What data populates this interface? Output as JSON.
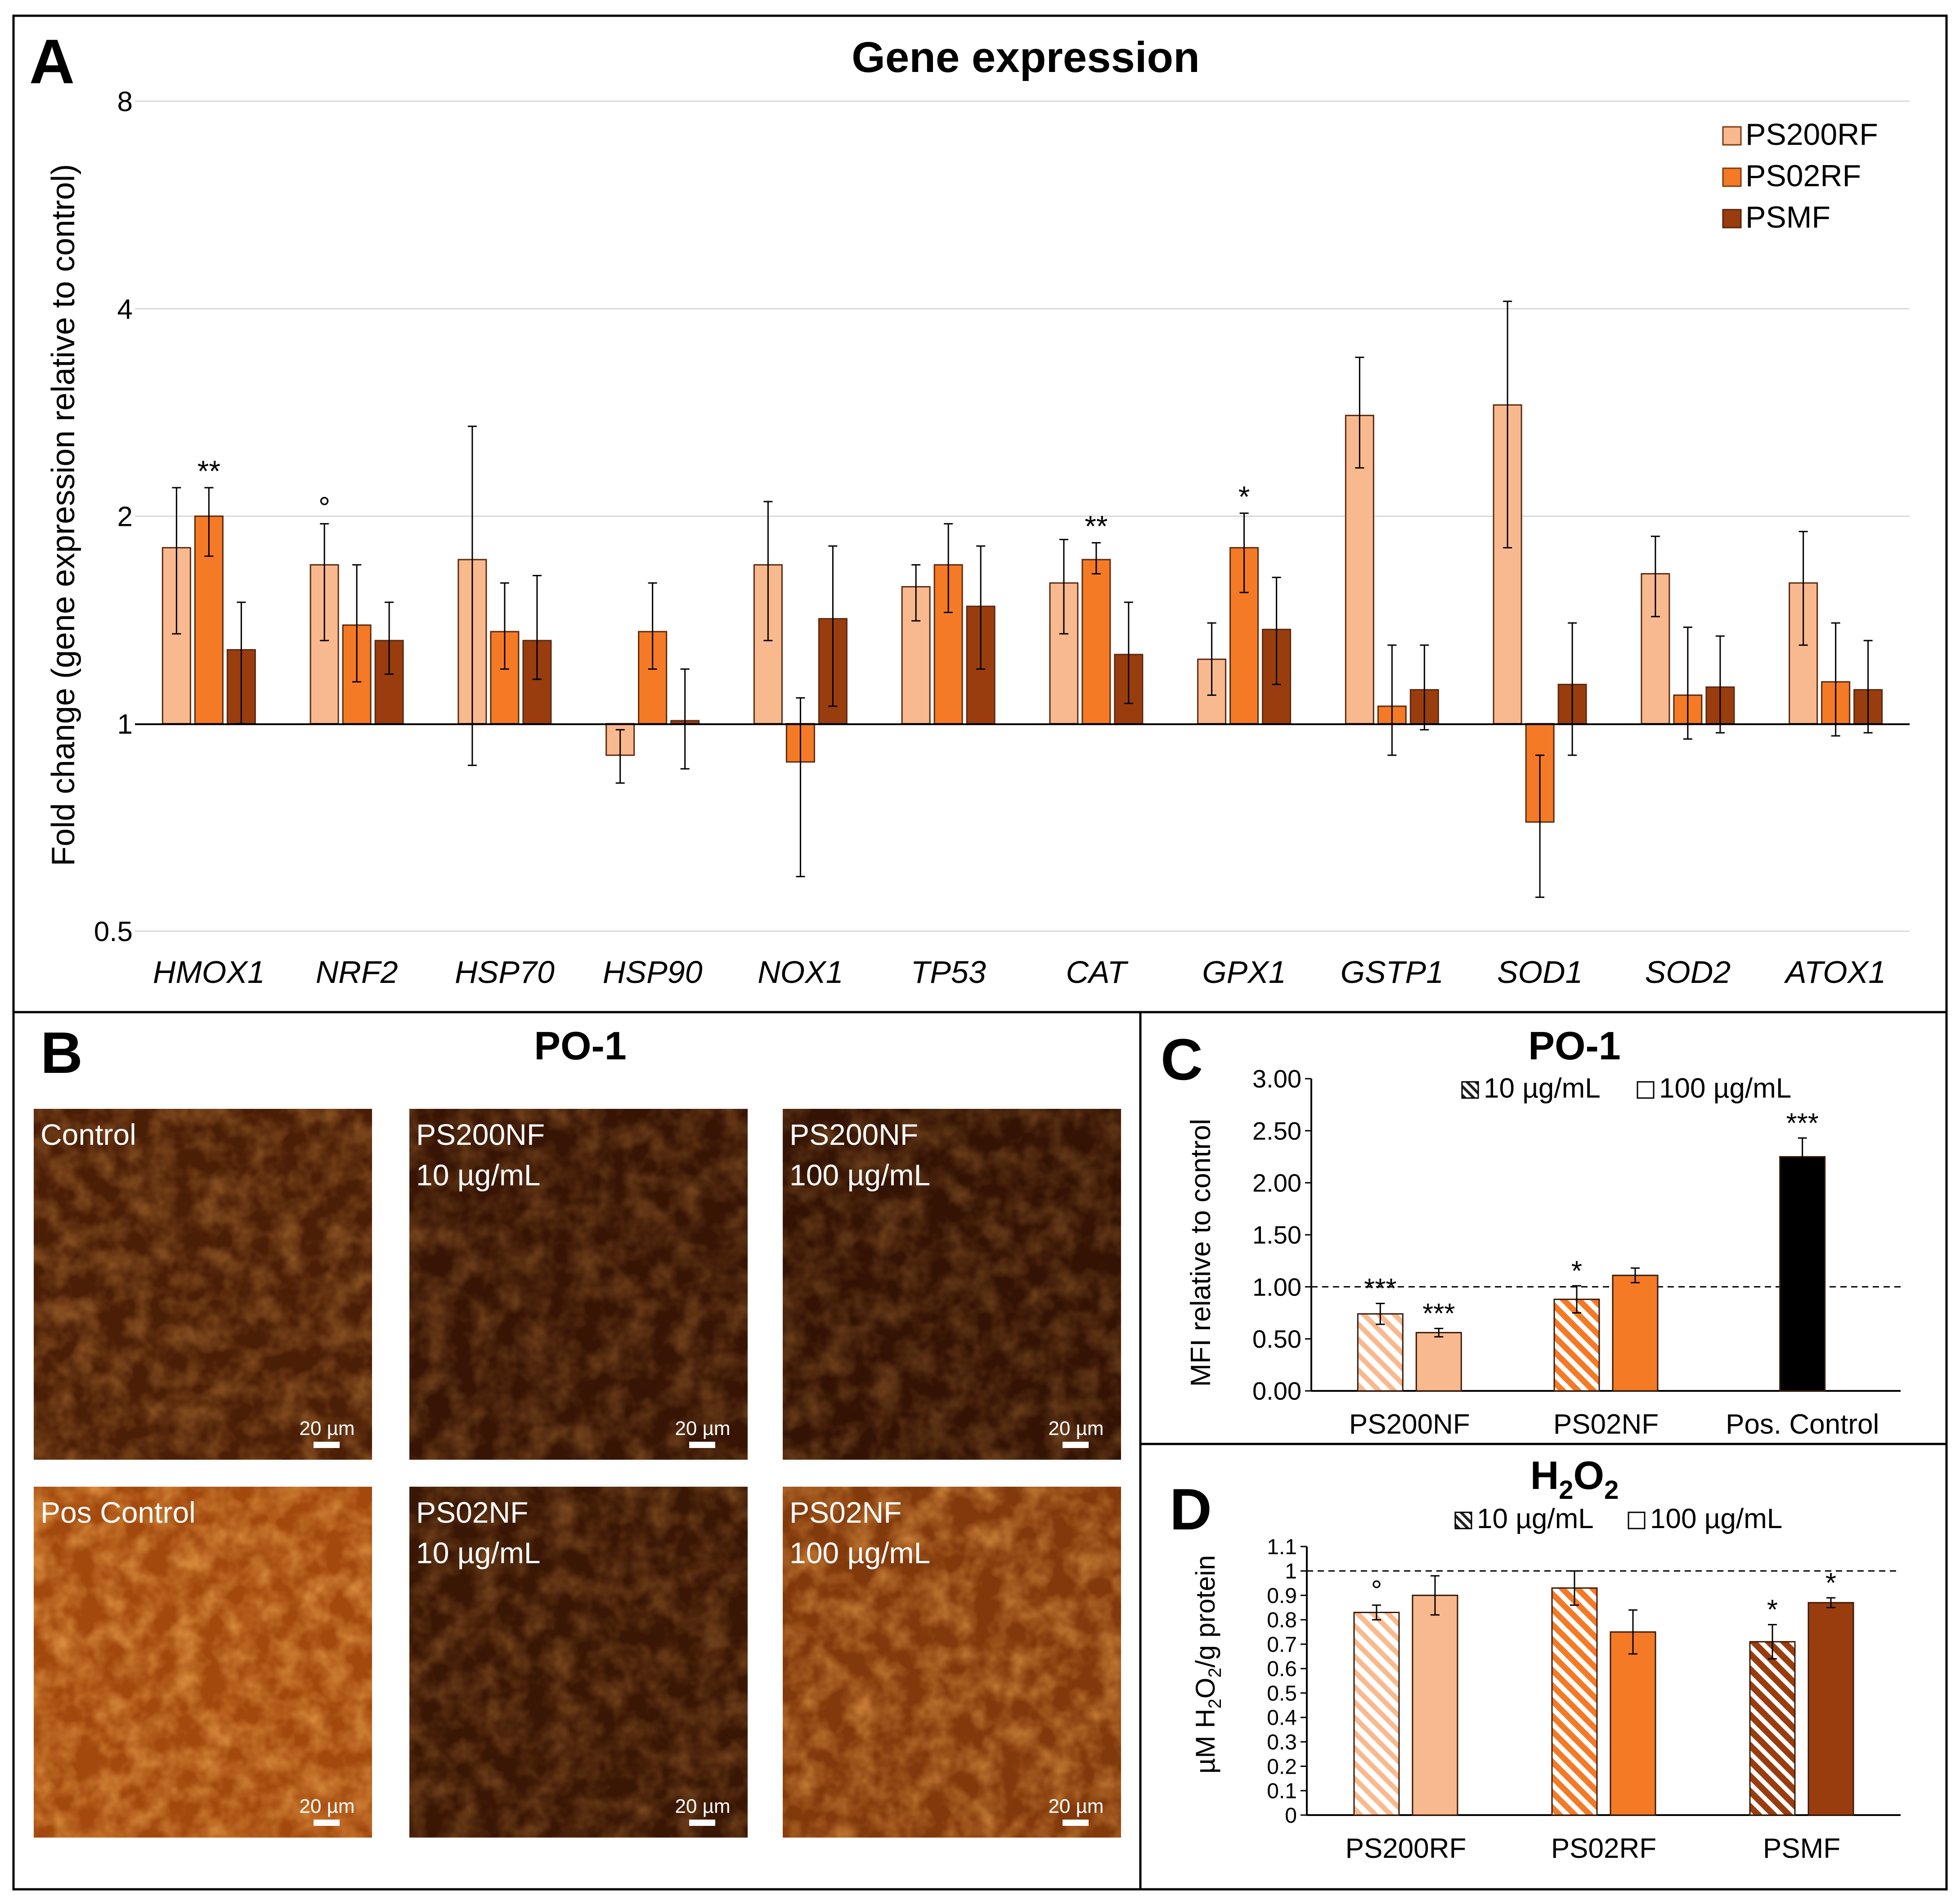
{
  "colors": {
    "ps200": "#f9b98e",
    "ps02": "#f57a26",
    "psmf": "#993d0f",
    "pos_control": "#000000",
    "grid": "#d9d9d9",
    "micro_dark": "#1c0802",
    "micro_bright": "#c65a12"
  },
  "panel_a": {
    "letter": "A",
    "chart_data": {
      "type": "bar",
      "title": "Gene expression",
      "ylabel": "Fold change (gene expression relative to control)",
      "yscale": "log2",
      "ylim": [
        0.5,
        8
      ],
      "yticks": [
        "0.5",
        "1",
        "2",
        "4",
        "8"
      ],
      "categories": [
        "HMOX1",
        "NRF2",
        "HSP70",
        "HSP90",
        "NOX1",
        "TP53",
        "CAT",
        "GPX1",
        "GSTP1",
        "SOD1",
        "SOD2",
        "ATOX1"
      ],
      "series": [
        {
          "name": "PS200RF",
          "values": [
            1.8,
            1.7,
            1.73,
            0.9,
            1.7,
            1.58,
            1.6,
            1.24,
            2.8,
            2.9,
            1.65,
            1.6
          ],
          "err_low": [
            1.35,
            1.32,
            0.87,
            0.82,
            1.32,
            1.41,
            1.35,
            1.1,
            2.35,
            1.8,
            1.43,
            1.3
          ],
          "err_high": [
            2.2,
            1.95,
            2.7,
            0.98,
            2.1,
            1.7,
            1.85,
            1.4,
            3.4,
            4.1,
            1.87,
            1.9
          ],
          "marks": [
            "",
            "°",
            "",
            "",
            "",
            "",
            "",
            "",
            "",
            "",
            "",
            ""
          ]
        },
        {
          "name": "PS02RF",
          "values": [
            2.0,
            1.39,
            1.36,
            1.36,
            0.88,
            1.7,
            1.73,
            1.8,
            1.06,
            0.72,
            1.1,
            1.15
          ],
          "err_low": [
            1.75,
            1.15,
            1.2,
            1.2,
            0.6,
            1.45,
            1.65,
            1.55,
            0.9,
            0.56,
            0.95,
            0.96
          ],
          "err_high": [
            2.2,
            1.7,
            1.6,
            1.6,
            1.09,
            1.95,
            1.83,
            2.02,
            1.3,
            0.9,
            1.38,
            1.4
          ],
          "marks": [
            "**",
            "",
            "",
            "",
            "",
            "",
            "**",
            "*",
            "",
            "",
            "",
            ""
          ]
        },
        {
          "name": "PSMF",
          "values": [
            1.28,
            1.32,
            1.32,
            1.01,
            1.42,
            1.48,
            1.26,
            1.37,
            1.12,
            1.14,
            1.13,
            1.12
          ],
          "err_low": [
            1.0,
            1.18,
            1.16,
            0.86,
            1.06,
            1.2,
            1.07,
            1.14,
            0.98,
            0.9,
            0.97,
            0.97
          ],
          "err_high": [
            1.5,
            1.5,
            1.64,
            1.2,
            1.81,
            1.81,
            1.5,
            1.63,
            1.3,
            1.4,
            1.34,
            1.32
          ]
        }
      ],
      "legend": {
        "position": "top-right"
      }
    }
  },
  "panel_b": {
    "letter": "B",
    "title": "PO-1",
    "scale_bar": "20 µm",
    "images": [
      {
        "line1": "Control",
        "line2": "",
        "intensity": 0.35
      },
      {
        "line1": "PS200NF",
        "line2": "10 µg/mL",
        "intensity": 0.2
      },
      {
        "line1": "PS200NF",
        "line2": "100 µg/mL",
        "intensity": 0.18
      },
      {
        "line1": "Pos Control",
        "line2": "",
        "intensity": 1.0
      },
      {
        "line1": "PS02NF",
        "line2": "10 µg/mL",
        "intensity": 0.22
      },
      {
        "line1": "PS02NF",
        "line2": "100 µg/mL",
        "intensity": 0.75
      }
    ]
  },
  "panel_c": {
    "letter": "C",
    "chart_data": {
      "type": "bar",
      "title": "PO-1",
      "ylabel": "MFI relative to control",
      "ylim": [
        0,
        3
      ],
      "yticks": [
        "0.00",
        "0.50",
        "1.00",
        "1.50",
        "2.00",
        "2.50",
        "3.00"
      ],
      "reference_line": 1.0,
      "legend": [
        "10 µg/mL",
        "100 µg/mL"
      ],
      "categories": [
        "PS200NF",
        "PS02NF",
        "Pos. Control"
      ],
      "bars": [
        {
          "group": "PS200NF",
          "dose": "10 µg/mL",
          "value": 0.74,
          "err": 0.1,
          "mark": "***",
          "color": "ps200",
          "hatched": true
        },
        {
          "group": "PS200NF",
          "dose": "100 µg/mL",
          "value": 0.56,
          "err": 0.04,
          "mark": "***",
          "color": "ps200",
          "hatched": false
        },
        {
          "group": "PS02NF",
          "dose": "10 µg/mL",
          "value": 0.88,
          "err": 0.13,
          "mark": "*",
          "color": "ps02",
          "hatched": true
        },
        {
          "group": "PS02NF",
          "dose": "100 µg/mL",
          "value": 1.11,
          "err": 0.07,
          "mark": "",
          "color": "ps02",
          "hatched": false
        },
        {
          "group": "Pos. Control",
          "dose": "",
          "value": 2.25,
          "err": 0.18,
          "mark": "***",
          "color": "pos_control",
          "hatched": false
        }
      ]
    }
  },
  "panel_d": {
    "letter": "D",
    "chart_data": {
      "type": "bar",
      "title": "H2O2",
      "title_main": "H",
      "title_sub1": "2",
      "title_mid": "O",
      "title_sub2": "2",
      "ylabel_pre": "µM H",
      "ylabel_sub1": "2",
      "ylabel_mid": "O",
      "ylabel_sub2": "2",
      "ylabel_post": "/g protein",
      "ylim": [
        0,
        1.1
      ],
      "yticks": [
        "0",
        "0.1",
        "0.2",
        "0.3",
        "0.4",
        "0.5",
        "0.6",
        "0.7",
        "0.8",
        "0.9",
        "1",
        "1.1"
      ],
      "reference_line": 1.0,
      "legend": [
        "10 µg/mL",
        "100 µg/mL"
      ],
      "categories": [
        "PS200RF",
        "PS02RF",
        "PSMF"
      ],
      "bars": [
        {
          "group": "PS200RF",
          "dose": "10 µg/mL",
          "value": 0.83,
          "err": 0.03,
          "mark": "°",
          "color": "ps200",
          "hatched": true
        },
        {
          "group": "PS200RF",
          "dose": "100 µg/mL",
          "value": 0.9,
          "err": 0.08,
          "mark": "",
          "color": "ps200",
          "hatched": false
        },
        {
          "group": "PS02RF",
          "dose": "10 µg/mL",
          "value": 0.93,
          "err": 0.07,
          "mark": "",
          "color": "ps02",
          "hatched": true
        },
        {
          "group": "PS02RF",
          "dose": "100 µg/mL",
          "value": 0.75,
          "err": 0.09,
          "mark": "",
          "color": "ps02",
          "hatched": false
        },
        {
          "group": "PSMF",
          "dose": "10 µg/mL",
          "value": 0.71,
          "err": 0.07,
          "mark": "*",
          "color": "psmf",
          "hatched": true
        },
        {
          "group": "PSMF",
          "dose": "100 µg/mL",
          "value": 0.87,
          "err": 0.02,
          "mark": "*",
          "color": "psmf",
          "hatched": false
        }
      ]
    }
  }
}
